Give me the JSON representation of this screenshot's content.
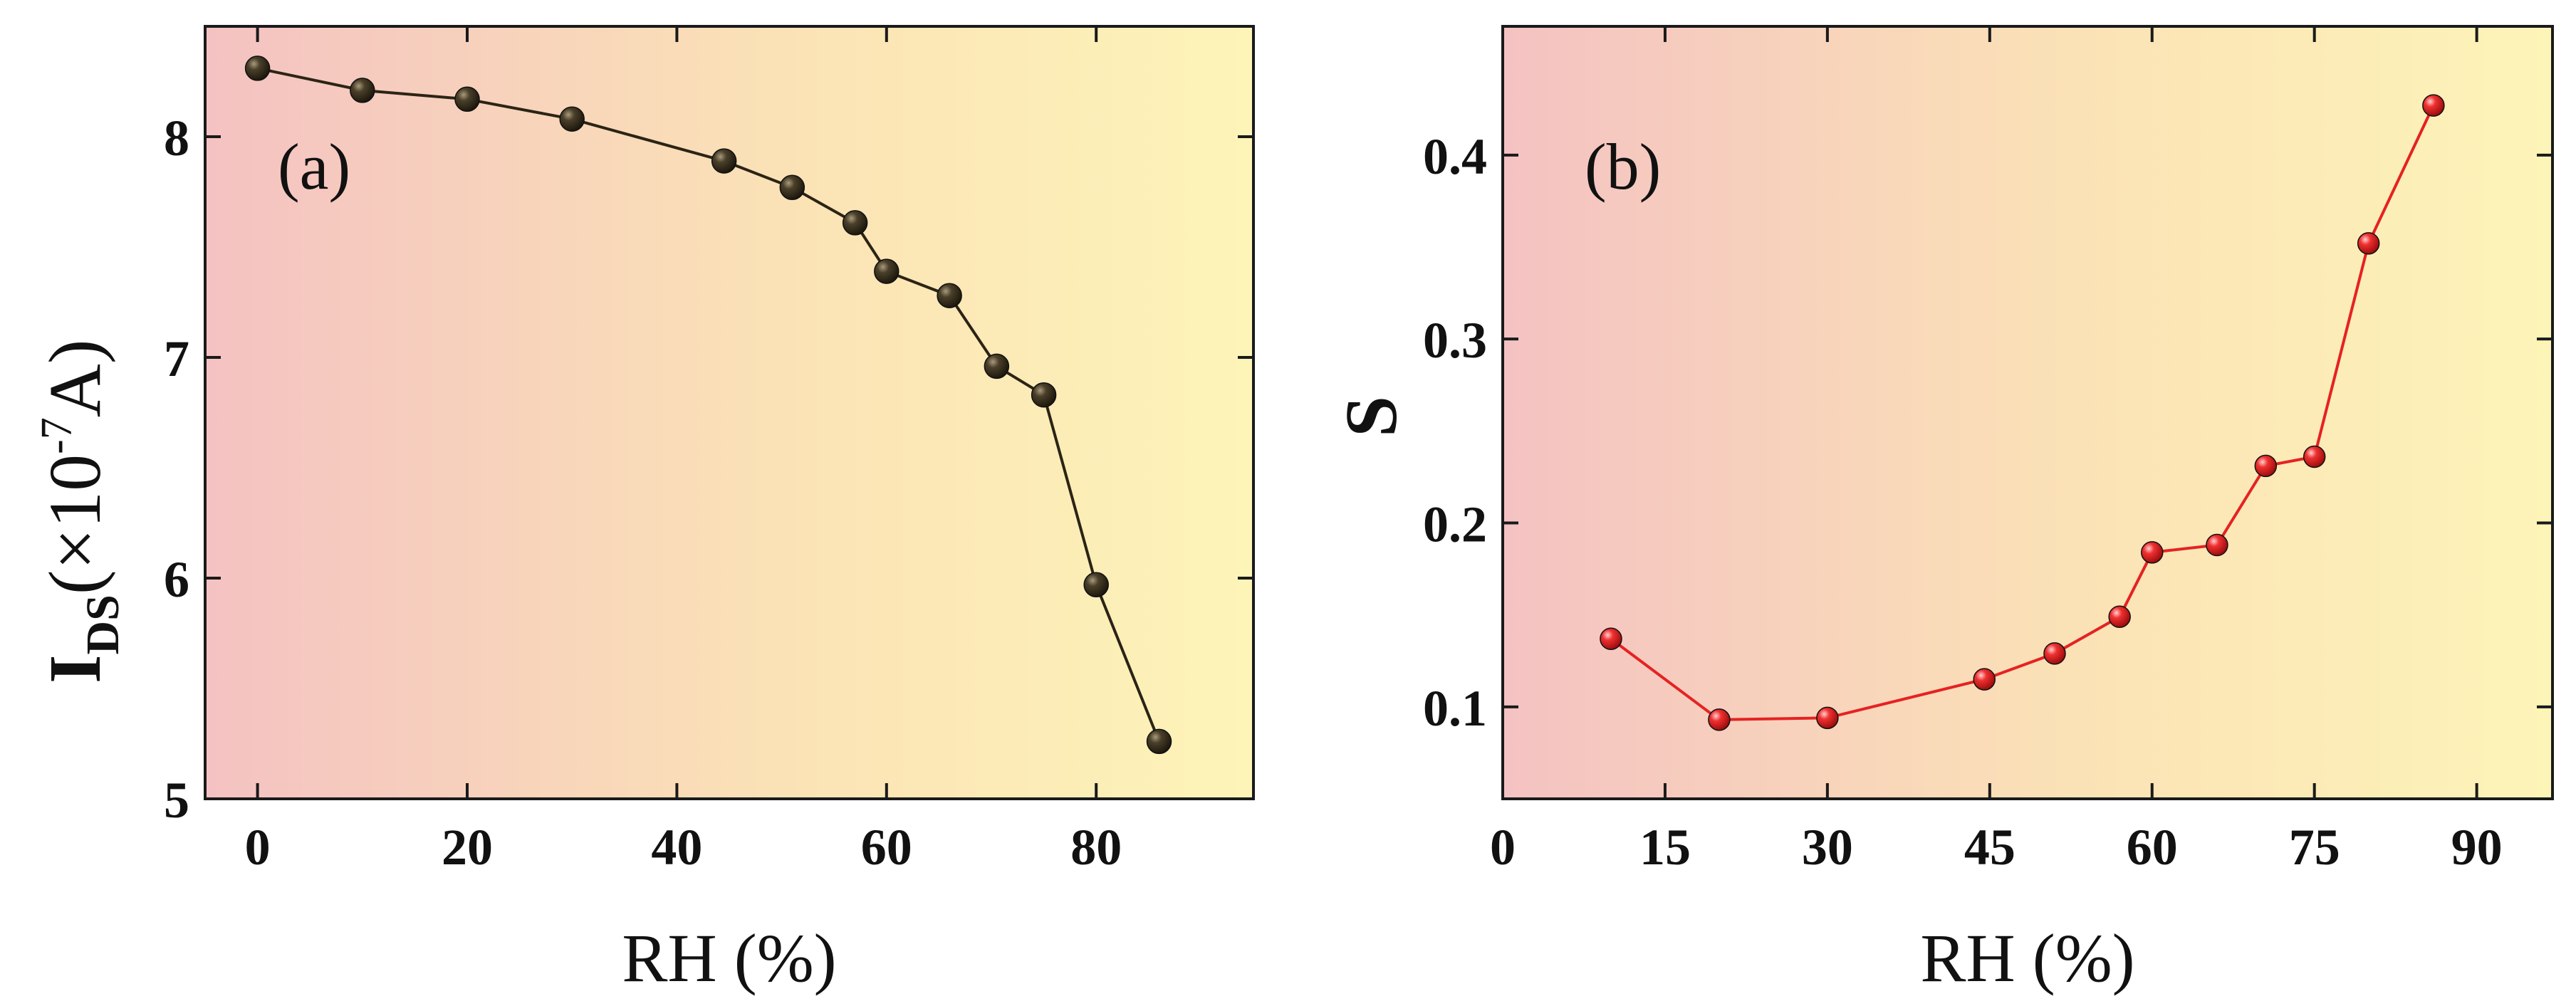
{
  "chart_data": [
    {
      "type": "line",
      "panel_label": "(a)",
      "title": "",
      "xlabel": "RH (%)",
      "ylabel": {
        "main": "I",
        "subscript": "DS",
        "prefix": "(×10",
        "exponent": "-7",
        "suffix": "A)"
      },
      "xlim": [
        -5,
        95
      ],
      "ylim": [
        5,
        8.5
      ],
      "xticks": [
        0,
        20,
        40,
        60,
        80
      ],
      "yticks": [
        5,
        6,
        7,
        8
      ],
      "grid": false,
      "series": [
        {
          "name": "IDS",
          "color": "#2b2415",
          "x": [
            0,
            10,
            20,
            30,
            44.5,
            51,
            57,
            60,
            66,
            70.5,
            75,
            80,
            86
          ],
          "y": [
            8.31,
            8.21,
            8.17,
            8.08,
            7.89,
            7.77,
            7.61,
            7.39,
            7.28,
            6.96,
            6.83,
            5.97,
            5.26
          ]
        }
      ],
      "background_gradient": [
        "#f4c2c2",
        "#fdf4b8"
      ]
    },
    {
      "type": "line",
      "panel_label": "(b)",
      "title": "",
      "xlabel": "RH (%)",
      "ylabel": "S",
      "xlim": [
        0,
        97
      ],
      "ylim": [
        0.05,
        0.47
      ],
      "xticks": [
        0,
        15,
        30,
        45,
        60,
        75,
        90
      ],
      "yticks": [
        0.1,
        0.2,
        0.3,
        0.4
      ],
      "grid": false,
      "series": [
        {
          "name": "S",
          "color": "#e52222",
          "x": [
            10,
            20,
            30,
            44.5,
            51,
            57,
            60,
            66,
            70.5,
            75,
            80,
            86
          ],
          "y": [
            0.137,
            0.093,
            0.094,
            0.115,
            0.129,
            0.149,
            0.184,
            0.188,
            0.231,
            0.236,
            0.352,
            0.427
          ]
        }
      ],
      "background_gradient": [
        "#f4c2c2",
        "#fdf4b8"
      ]
    }
  ]
}
